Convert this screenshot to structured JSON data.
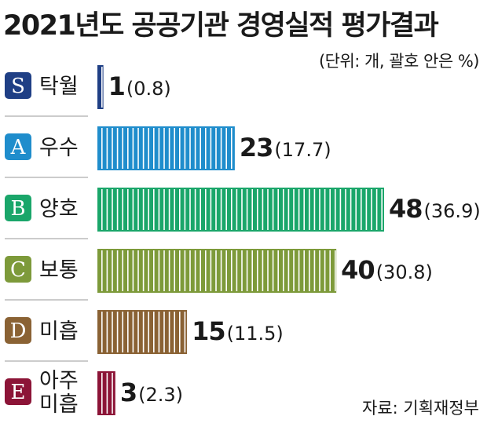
{
  "title": "2021년도 공공기관 경영실적 평가결과",
  "unit_note": "(단위: 개, 괄호 안은 %)",
  "source": "자료: 기획재정부",
  "chart_data": {
    "type": "bar",
    "orientation": "horizontal",
    "title": "2021년도 공공기관 경영실적 평가결과",
    "categories": [
      {
        "grade": "S",
        "label_lines": [
          "탁월"
        ],
        "value": 1,
        "percent": "0.8",
        "color": "#1f3f85"
      },
      {
        "grade": "A",
        "label_lines": [
          "우수"
        ],
        "value": 23,
        "percent": "17.7",
        "color": "#1f8dcc"
      },
      {
        "grade": "B",
        "label_lines": [
          "양호"
        ],
        "value": 48,
        "percent": "36.9",
        "color": "#1aa66a"
      },
      {
        "grade": "C",
        "label_lines": [
          "보통"
        ],
        "value": 40,
        "percent": "30.8",
        "color": "#7d9a3a"
      },
      {
        "grade": "D",
        "label_lines": [
          "미흡"
        ],
        "value": 15,
        "percent": "11.5",
        "color": "#8a6234"
      },
      {
        "grade": "E",
        "label_lines": [
          "아주",
          "미흡"
        ],
        "value": 3,
        "percent": "2.3",
        "color": "#8c1437"
      }
    ],
    "legend": "none",
    "grid": false
  }
}
